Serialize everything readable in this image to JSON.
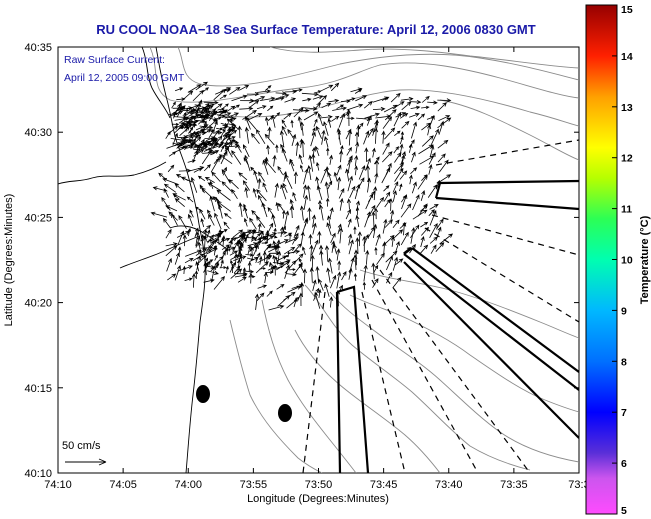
{
  "chart_data": {
    "type": "vector-field map",
    "title": "RU COOL  NOAA−18  Sea Surface Temperature:  April 12, 2006 0830 GMT",
    "xlabel": "Longitude (Degrees:Minutes)",
    "ylabel": "Latitude (Degrees:Minutes)",
    "xlim_minutes_west": [
      10,
      33
    ],
    "ylim_minutes_north": [
      10,
      35
    ],
    "x_ticks": [
      "74:10",
      "74:05",
      "74:00",
      "73:55",
      "73:50",
      "73:45",
      "73:40",
      "73:35",
      "73:3"
    ],
    "y_ticks": [
      "40:35",
      "40:30",
      "40:25",
      "40:20",
      "40:15",
      "40:10"
    ],
    "annotation": {
      "line1": "Raw Surface Current:",
      "line2": "April 12, 2005 09:00 GMT"
    },
    "scale_arrow_label": "50 cm/s",
    "colorbar": {
      "label": "Temperature (°C)",
      "min": 5,
      "max": 15,
      "ticks": [
        "15",
        "14",
        "13",
        "12",
        "11",
        "10",
        "9",
        "8",
        "7",
        "6",
        "5"
      ]
    },
    "grid": false,
    "colors": {
      "title": "#1a1aa8",
      "arrows": "#000000",
      "bathymetry": "#8c8c8c",
      "markers": "#000000"
    }
  }
}
